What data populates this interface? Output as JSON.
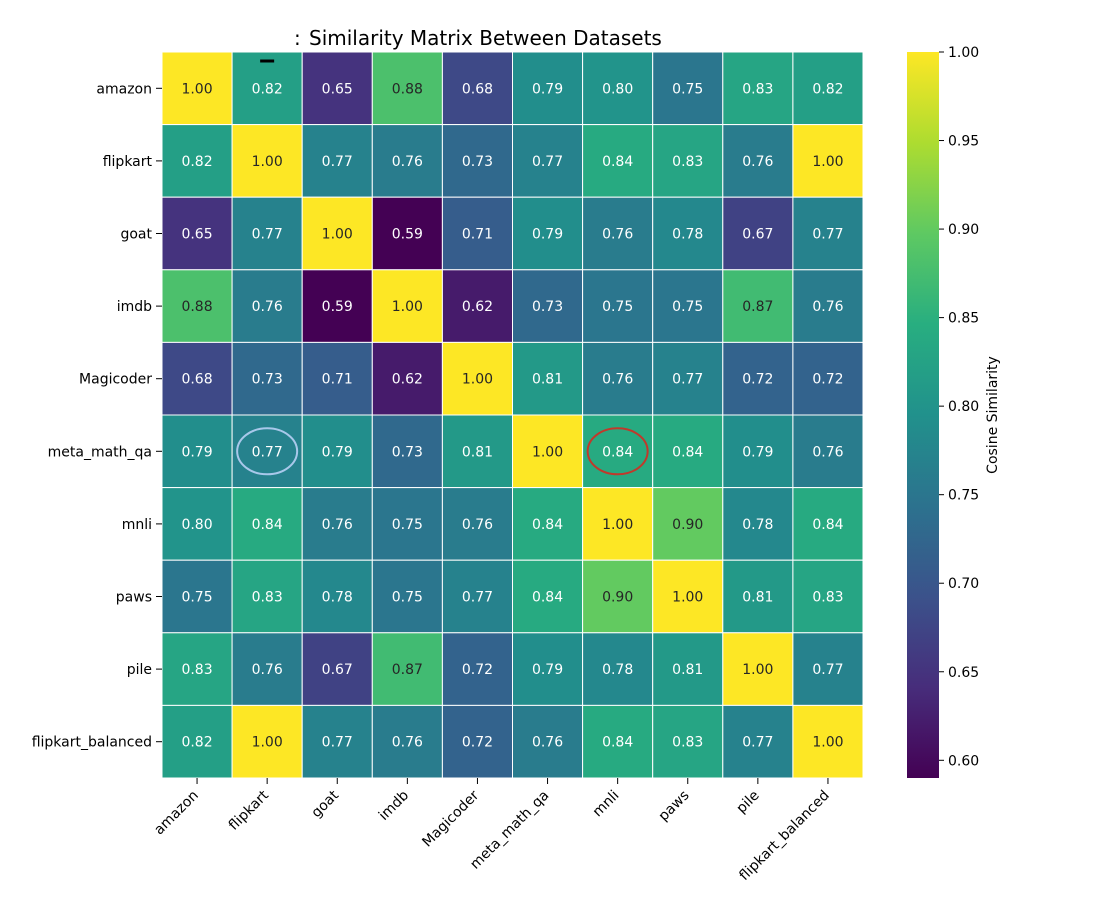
{
  "chart_data": {
    "type": "heatmap",
    "title": "Similarity Matrix Between Datasets",
    "title_prefix": ":",
    "row_labels": [
      "amazon",
      "flipkart",
      "goat",
      "imdb",
      "Magicoder",
      "meta_math_qa",
      "mnli",
      "paws",
      "pile",
      "flipkart_balanced"
    ],
    "col_labels": [
      "amazon",
      "flipkart",
      "goat",
      "imdb",
      "Magicoder",
      "meta_math_qa",
      "mnli",
      "paws",
      "pile",
      "flipkart_balanced"
    ],
    "values": [
      [
        1.0,
        0.82,
        0.65,
        0.88,
        0.68,
        0.79,
        0.8,
        0.75,
        0.83,
        0.82
      ],
      [
        0.82,
        1.0,
        0.77,
        0.76,
        0.73,
        0.77,
        0.84,
        0.83,
        0.76,
        1.0
      ],
      [
        0.65,
        0.77,
        1.0,
        0.59,
        0.71,
        0.79,
        0.76,
        0.78,
        0.67,
        0.77
      ],
      [
        0.88,
        0.76,
        0.59,
        1.0,
        0.62,
        0.73,
        0.75,
        0.75,
        0.87,
        0.76
      ],
      [
        0.68,
        0.73,
        0.71,
        0.62,
        1.0,
        0.81,
        0.76,
        0.77,
        0.72,
        0.72
      ],
      [
        0.79,
        0.77,
        0.79,
        0.73,
        0.81,
        1.0,
        0.84,
        0.84,
        0.79,
        0.76
      ],
      [
        0.8,
        0.84,
        0.76,
        0.75,
        0.76,
        0.84,
        1.0,
        0.9,
        0.78,
        0.84
      ],
      [
        0.75,
        0.83,
        0.78,
        0.75,
        0.77,
        0.84,
        0.9,
        1.0,
        0.81,
        0.83
      ],
      [
        0.83,
        0.76,
        0.67,
        0.87,
        0.72,
        0.79,
        0.78,
        0.81,
        1.0,
        0.77
      ],
      [
        0.82,
        1.0,
        0.77,
        0.76,
        0.72,
        0.76,
        0.84,
        0.83,
        0.77,
        1.0
      ]
    ],
    "value_range": [
      0.59,
      1.0
    ],
    "colormap": "viridis",
    "colorbar": {
      "label": "Cosine Similarity",
      "ticks": [
        "0.60",
        "0.65",
        "0.70",
        "0.75",
        "0.80",
        "0.85",
        "0.90",
        "0.95",
        "1.00"
      ]
    },
    "annotations": [
      {
        "type": "circle",
        "row": 5,
        "col": 1,
        "color": "#a8c8ea"
      },
      {
        "type": "circle",
        "row": 5,
        "col": 6,
        "color": "#c0392b"
      },
      {
        "type": "dash",
        "row": 0,
        "col": 1,
        "color": "#000000"
      }
    ]
  }
}
